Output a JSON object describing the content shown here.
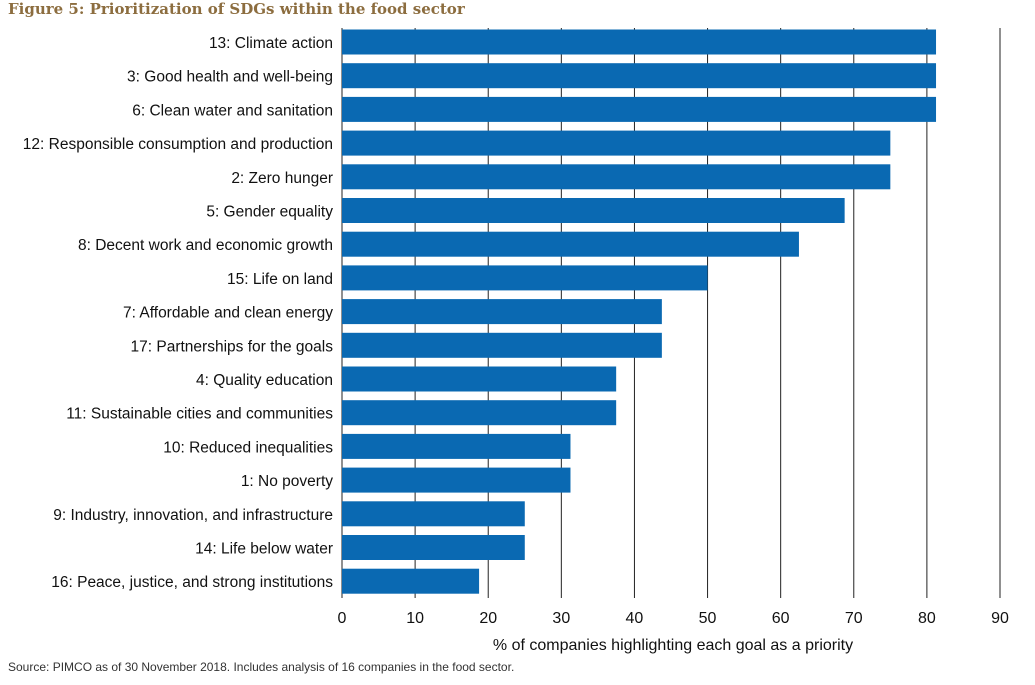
{
  "figure_title": "Figure 5: Prioritization of SDGs within the food sector",
  "source_note": "Source: PIMCO as of 30 November 2018. Includes analysis of 16 companies in the food sector.",
  "colors": {
    "bar": "#0a69b2",
    "title": "#8c6d3f",
    "gridline": "#222222"
  },
  "chart_data": {
    "type": "bar",
    "orientation": "horizontal",
    "title": "Figure 5: Prioritization of SDGs within the food sector",
    "xlabel": "% of companies highlighting each goal as a priority",
    "ylabel": "",
    "xlim": [
      0,
      90
    ],
    "xticks": [
      0,
      10,
      20,
      30,
      40,
      50,
      60,
      70,
      80,
      90
    ],
    "grid": "vertical gridlines",
    "categories": [
      "13: Climate action",
      "3: Good health and well-being",
      "6: Clean water and sanitation",
      "12: Responsible consumption and production",
      "2: Zero hunger",
      "5: Gender equality",
      "8: Decent work and economic growth",
      "15: Life on land",
      "7: Affordable and clean energy",
      "17: Partnerships for the goals",
      "4: Quality education",
      "11: Sustainable cities and communities",
      "10: Reduced inequalities",
      "1: No poverty",
      "9: Industry, innovation, and infrastructure",
      "14: Life below water",
      "16: Peace, justice, and strong institutions"
    ],
    "values": [
      81.25,
      81.25,
      81.25,
      75,
      75,
      68.75,
      62.5,
      50,
      43.75,
      43.75,
      37.5,
      37.5,
      31.25,
      31.25,
      25,
      25,
      18.75
    ]
  }
}
